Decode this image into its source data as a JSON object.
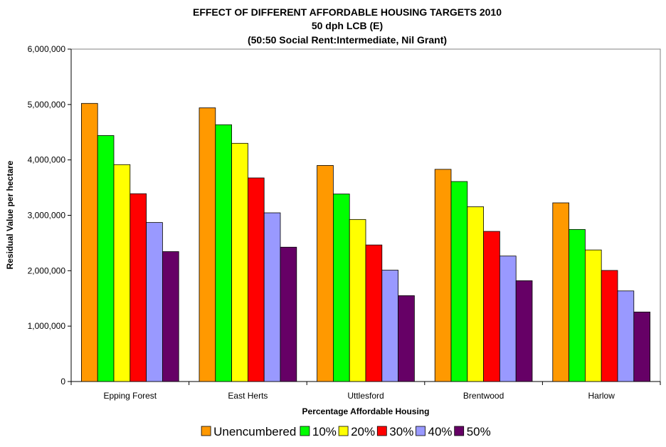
{
  "chart_data": {
    "type": "bar",
    "title_lines": [
      "EFFECT OF DIFFERENT AFFORDABLE HOUSING TARGETS 2010",
      "50 dph LCB (E)",
      "(50:50 Social Rent:Intermediate, Nil Grant)"
    ],
    "xlabel": "Percentage Affordable Housing",
    "ylabel": "Residual Value per hectare",
    "ylim": [
      0,
      6000000
    ],
    "yticks": [
      0,
      1000000,
      2000000,
      3000000,
      4000000,
      5000000,
      6000000
    ],
    "ytick_labels": [
      "0",
      "1,000,000",
      "2,000,000",
      "3,000,000",
      "4,000,000",
      "5,000,000",
      "6,000,000"
    ],
    "categories": [
      "Epping Forest",
      "East Herts",
      "Uttlesford",
      "Brentwood",
      "Harlow"
    ],
    "series": [
      {
        "name": "Unencumbered",
        "color": "#FF9900",
        "values": [
          5020000,
          4940000,
          3900000,
          3830000,
          3225000
        ]
      },
      {
        "name": "10%",
        "color": "#00FF00",
        "values": [
          4440000,
          4635000,
          3385000,
          3610000,
          2745000
        ]
      },
      {
        "name": "20%",
        "color": "#FFFF00",
        "values": [
          3915000,
          4300000,
          2925000,
          3155000,
          2375000
        ]
      },
      {
        "name": "30%",
        "color": "#FF0000",
        "values": [
          3390000,
          3675000,
          2465000,
          2710000,
          2005000
        ]
      },
      {
        "name": "40%",
        "color": "#9999FF",
        "values": [
          2870000,
          3045000,
          2010000,
          2265000,
          1635000
        ]
      },
      {
        "name": "50%",
        "color": "#660066",
        "values": [
          2345000,
          2425000,
          1550000,
          1820000,
          1255000
        ]
      }
    ],
    "grid": false,
    "legend_position": "bottom"
  }
}
